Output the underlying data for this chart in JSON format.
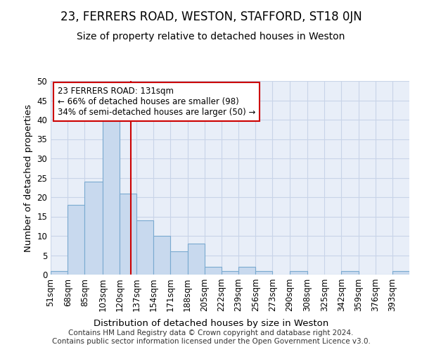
{
  "title": "23, FERRERS ROAD, WESTON, STAFFORD, ST18 0JN",
  "subtitle": "Size of property relative to detached houses in Weston",
  "xlabel": "Distribution of detached houses by size in Weston",
  "ylabel": "Number of detached properties",
  "footer_line1": "Contains HM Land Registry data © Crown copyright and database right 2024.",
  "footer_line2": "Contains public sector information licensed under the Open Government Licence v3.0.",
  "bin_edges": [
    51,
    68,
    85,
    103,
    120,
    137,
    154,
    171,
    188,
    205,
    222,
    239,
    256,
    273,
    290,
    308,
    325,
    342,
    359,
    376,
    393,
    410
  ],
  "bin_labels": [
    "51sqm",
    "68sqm",
    "85sqm",
    "103sqm",
    "120sqm",
    "137sqm",
    "154sqm",
    "171sqm",
    "188sqm",
    "205sqm",
    "222sqm",
    "239sqm",
    "256sqm",
    "273sqm",
    "290sqm",
    "308sqm",
    "325sqm",
    "342sqm",
    "359sqm",
    "376sqm",
    "393sqm"
  ],
  "bar_values": [
    1,
    18,
    24,
    40,
    21,
    14,
    10,
    6,
    8,
    2,
    1,
    2,
    1,
    0,
    1,
    0,
    0,
    1,
    0,
    0,
    1
  ],
  "bar_color": "#c8d9ee",
  "bar_edge_color": "#7aaad0",
  "annotation_text": "23 FERRERS ROAD: 131sqm\n← 66% of detached houses are smaller (98)\n34% of semi-detached houses are larger (50) →",
  "annotation_box_facecolor": "#ffffff",
  "annotation_box_edgecolor": "#cc0000",
  "vline_x": 131,
  "vline_color": "#cc0000",
  "ylim": [
    0,
    50
  ],
  "yticks": [
    0,
    5,
    10,
    15,
    20,
    25,
    30,
    35,
    40,
    45,
    50
  ],
  "grid_color": "#c8d4e8",
  "background_color": "#e8eef8",
  "title_fontsize": 12,
  "subtitle_fontsize": 10,
  "axis_label_fontsize": 9.5,
  "tick_fontsize": 8.5,
  "annotation_fontsize": 8.5,
  "footer_fontsize": 7.5
}
